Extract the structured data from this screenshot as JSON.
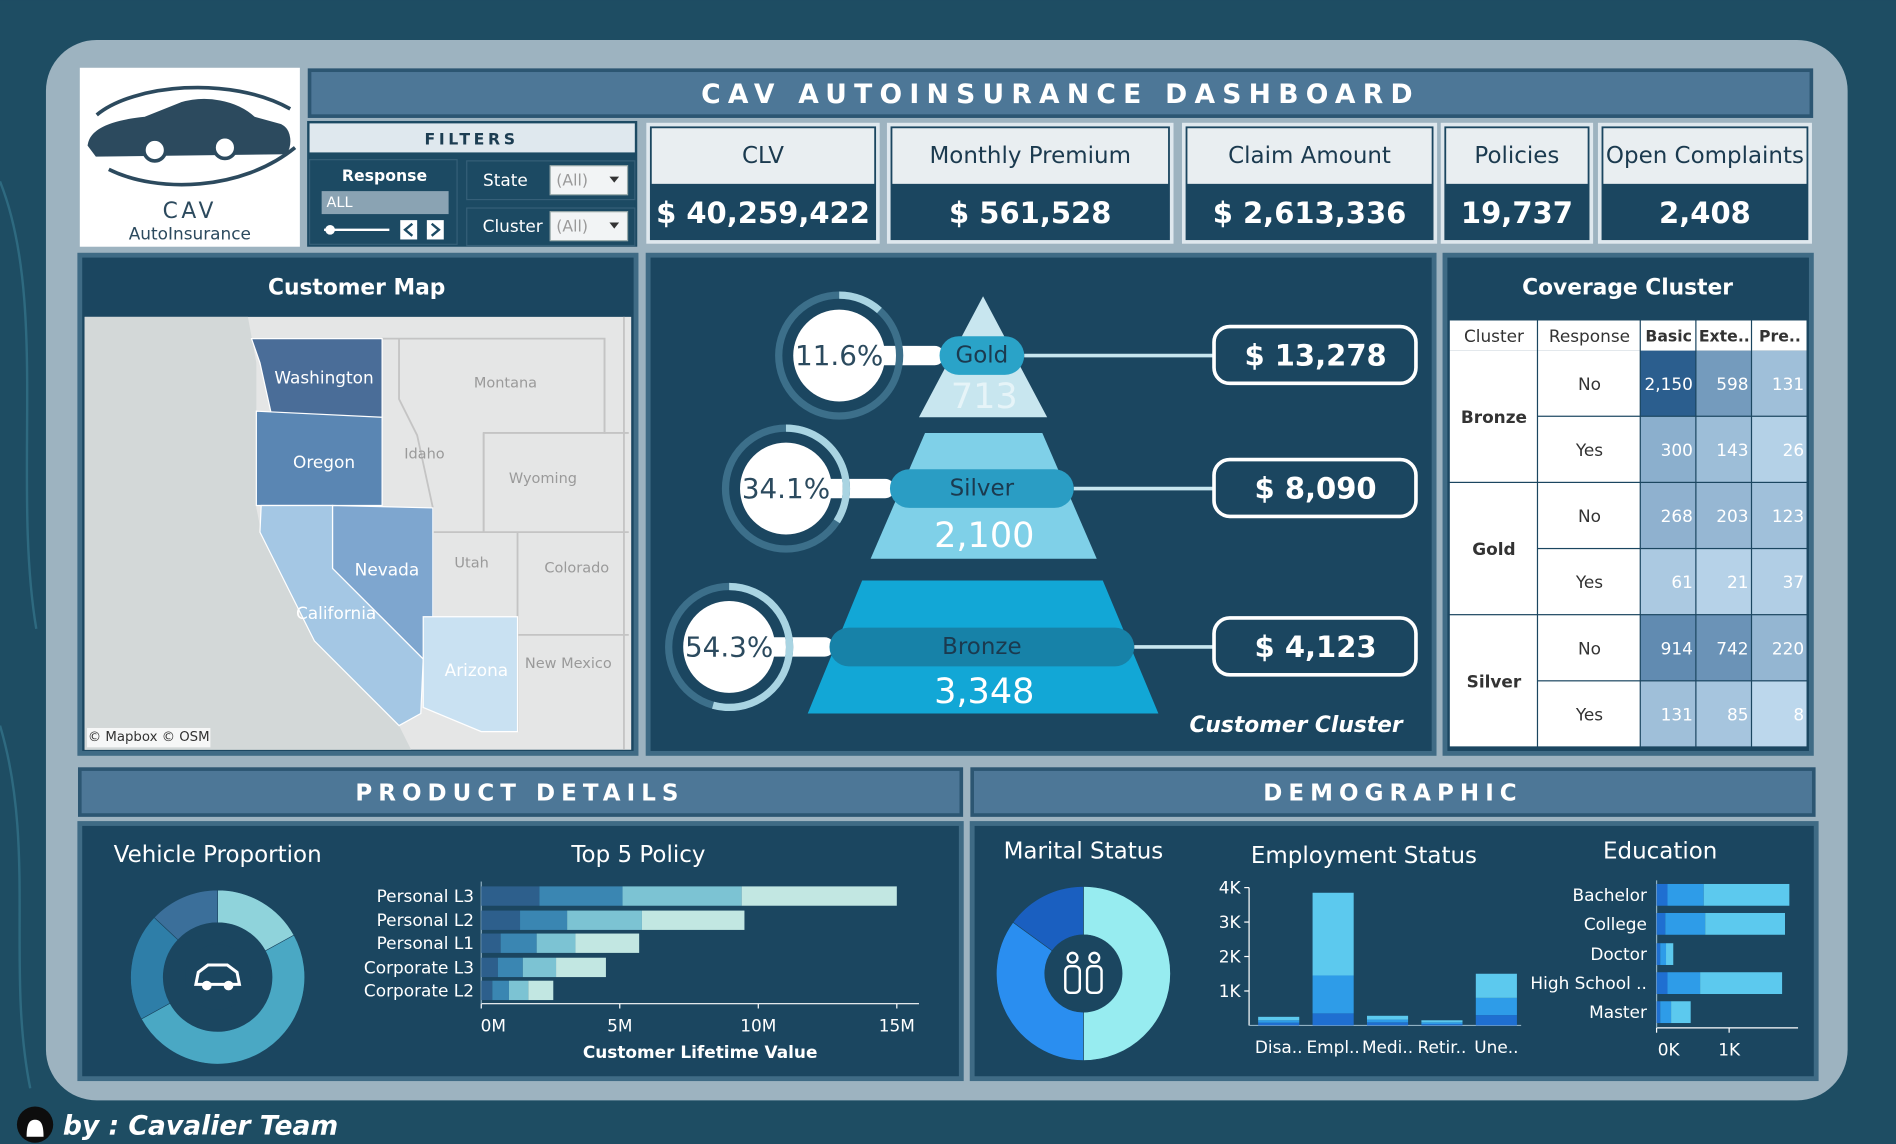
{
  "logo": {
    "brand": "CAV",
    "tagline": "AutoInsurance"
  },
  "title": "CAV AUTOINSURANCE DASHBOARD",
  "filters": {
    "title": "FILTERS",
    "response": {
      "label": "Response",
      "value": "ALL"
    },
    "state": {
      "label": "State",
      "value": "(All)"
    },
    "cluster": {
      "label": "Cluster",
      "value": "(All)"
    }
  },
  "kpis": [
    {
      "label": "CLV",
      "value": "$ 40,259,422"
    },
    {
      "label": "Monthly Premium",
      "value": "$ 561,528"
    },
    {
      "label": "Claim Amount",
      "value": "$ 2,613,336"
    },
    {
      "label": "Policies",
      "value": "19,737"
    },
    {
      "label": "Open Complaints",
      "value": "2,408"
    }
  ],
  "map": {
    "title": "Customer Map",
    "states": [
      {
        "name": "Washington",
        "color": "#4a6d98"
      },
      {
        "name": "Oregon",
        "color": "#5a86b3"
      },
      {
        "name": "Nevada",
        "color": "#7ea6cf"
      },
      {
        "name": "California",
        "color": "#a4c7e4"
      },
      {
        "name": "Arizona",
        "color": "#c9e1f2"
      }
    ],
    "other_states": [
      "Montana",
      "Idaho",
      "Wyoming",
      "Utah",
      "Colorado",
      "New Mexico"
    ],
    "attribution": "© Mapbox © OSM"
  },
  "coverage": {
    "title": "Coverage Cluster",
    "columns": [
      "Cluster",
      "Response",
      "Basic",
      "Exte..",
      "Pre.."
    ],
    "groups": [
      {
        "cluster": "Bronze",
        "rows": [
          {
            "response": "No",
            "values": [
              2150,
              598,
              131
            ],
            "value_labels": [
              "2,150",
              "598",
              "131"
            ]
          },
          {
            "response": "Yes",
            "values": [
              300,
              143,
              26
            ]
          }
        ]
      },
      {
        "cluster": "Gold",
        "rows": [
          {
            "response": "No",
            "values": [
              268,
              203,
              123
            ]
          },
          {
            "response": "Yes",
            "values": [
              61,
              21,
              37
            ]
          }
        ]
      },
      {
        "cluster": "Silver",
        "rows": [
          {
            "response": "No",
            "values": [
              914,
              742,
              220
            ]
          },
          {
            "response": "Yes",
            "values": [
              131,
              85,
              8
            ]
          }
        ]
      }
    ]
  },
  "sections": {
    "product": "PRODUCT DETAILS",
    "demographic": "DEMOGRAPHIC"
  },
  "chart_data": [
    {
      "type": "pyramid",
      "title": "Customer Cluster",
      "categories": [
        "Gold",
        "Silver",
        "Bronze"
      ],
      "values": [
        713,
        2100,
        3348
      ],
      "value_labels": [
        "713",
        "2,100",
        "3,348"
      ],
      "shares": [
        11.6,
        34.1,
        54.3
      ],
      "share_labels": [
        "11.6%",
        "34.1%",
        "54.3%"
      ],
      "amounts": [
        13278,
        8090,
        4123
      ],
      "amount_labels": [
        "$ 13,278",
        "$ 8,090",
        "$ 4,123"
      ],
      "colors": [
        "#c8e6ef",
        "#7fd0e8",
        "#12a7d6"
      ]
    },
    {
      "type": "donut",
      "title": "Vehicle Proportion",
      "values": [
        17,
        50,
        20,
        13
      ],
      "colors": [
        "#8fd3db",
        "#4aa8c4",
        "#2e7ea8",
        "#3b6f9a"
      ]
    },
    {
      "type": "hbar_stacked",
      "title": "Top 5 Policy",
      "categories": [
        "Personal L3",
        "Personal L2",
        "Personal L1",
        "Corporate L3",
        "Corporate L2"
      ],
      "series": [
        {
          "color": "#2d5f8c",
          "values": [
            2100000,
            1400000,
            700000,
            600000,
            400000
          ]
        },
        {
          "color": "#3a86b2",
          "values": [
            3000000,
            1700000,
            1300000,
            900000,
            600000
          ]
        },
        {
          "color": "#7cc3d3",
          "values": [
            4300000,
            2700000,
            1400000,
            1200000,
            700000
          ]
        },
        {
          "color": "#c2e7e2",
          "values": [
            5600000,
            3700000,
            2300000,
            1800000,
            900000
          ]
        }
      ],
      "xlim": [
        0,
        15800000
      ],
      "xticks": [
        {
          "value": 0,
          "label": "0M"
        },
        {
          "value": 5000000,
          "label": "5M"
        },
        {
          "value": 10000000,
          "label": "10M"
        },
        {
          "value": 15000000,
          "label": "15M"
        }
      ],
      "xlabel": "Customer Lifetime Value"
    },
    {
      "type": "donut",
      "title": "Marital Status",
      "values": [
        50,
        35,
        15
      ],
      "colors": [
        "#97ecf0",
        "#2a8ef0",
        "#1a5fc0"
      ]
    },
    {
      "type": "vbar_stacked",
      "title": "Employment Status",
      "categories": [
        "Disa..",
        "Empl..",
        "Medi..",
        "Retir..",
        "Une.."
      ],
      "series": [
        {
          "color": "#1f6fd1",
          "values": [
            80,
            350,
            90,
            40,
            300
          ]
        },
        {
          "color": "#2e9ce8",
          "values": [
            70,
            1100,
            80,
            50,
            500
          ]
        },
        {
          "color": "#5cc9ee",
          "values": [
            100,
            2400,
            110,
            60,
            700
          ]
        }
      ],
      "ylim": [
        0,
        4000
      ],
      "yticks": [
        {
          "value": 1000,
          "label": "1K"
        },
        {
          "value": 2000,
          "label": "2K"
        },
        {
          "value": 3000,
          "label": "3K"
        },
        {
          "value": 4000,
          "label": "4K"
        }
      ]
    },
    {
      "type": "hbar_stacked",
      "title": "Education",
      "categories": [
        "Bachelor",
        "College",
        "Doctor",
        "High School ..",
        "Master"
      ],
      "series": [
        {
          "color": "#1f6fd1",
          "values": [
            150,
            120,
            50,
            150,
            50
          ]
        },
        {
          "color": "#2e9ce8",
          "values": [
            500,
            550,
            80,
            450,
            150
          ]
        },
        {
          "color": "#5cc9ee",
          "values": [
            1180,
            1100,
            100,
            1130,
            270
          ]
        }
      ],
      "xlim": [
        0,
        1950
      ],
      "xticks": [
        {
          "value": 0,
          "label": "0K"
        },
        {
          "value": 1000,
          "label": "1K"
        }
      ]
    }
  ],
  "footer": "by : Cavalier Team"
}
